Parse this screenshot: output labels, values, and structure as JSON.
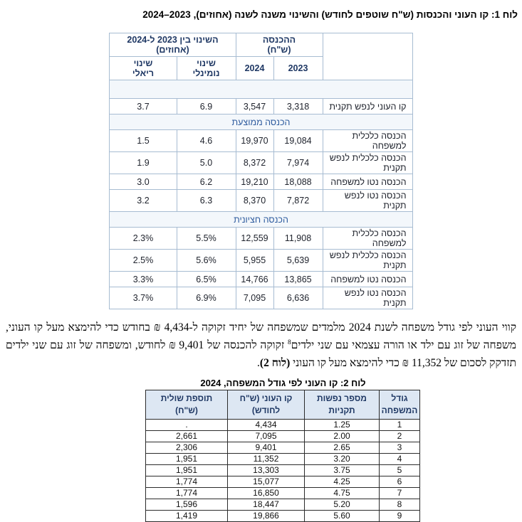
{
  "table1": {
    "title": "לוח 1: קו העוני והכנסות (ש\"ח שוטפים לחודש) והשינוי משנה לשנה (אחוזים), 2023–2024",
    "header": {
      "corner": "",
      "income_group": "ההכנסה\n(ש\"ח)",
      "change_group": "השינוי בין 2023 ל-2024\n(אחוזים)",
      "col_2023": "2023",
      "col_2024": "2024",
      "col_nominal": "שינוי\nנומינלי",
      "col_real": "שינוי\nריאלי"
    },
    "rows": [
      {
        "type": "spacer"
      },
      {
        "type": "data",
        "label": "קו העוני לנפש תקנית",
        "y2023": "3,318",
        "y2024": "3,547",
        "nominal": "6.9",
        "real": "3.7"
      },
      {
        "type": "section",
        "label": "הכנסה ממוצעת"
      },
      {
        "type": "data",
        "label": "הכנסה כלכלית למשפחה",
        "y2023": "19,084",
        "y2024": "19,970",
        "nominal": "4.6",
        "real": "1.5"
      },
      {
        "type": "data",
        "label": "הכנסה כלכלית לנפש תקנית",
        "y2023": "7,974",
        "y2024": "8,372",
        "nominal": "5.0",
        "real": "1.9"
      },
      {
        "type": "data",
        "label": "הכנסה נטו למשפחה",
        "y2023": "18,088",
        "y2024": "19,210",
        "nominal": "6.2",
        "real": "3.0"
      },
      {
        "type": "data",
        "label": "הכנסה נטו לנפש תקנית",
        "y2023": "7,872",
        "y2024": "8,370",
        "nominal": "6.3",
        "real": "3.2"
      },
      {
        "type": "section",
        "label": "הכנסה חציונית"
      },
      {
        "type": "data",
        "label": "הכנסה כלכלית למשפחה",
        "y2023": "11,908",
        "y2024": "12,559",
        "nominal": "5.5%",
        "real": "2.3%"
      },
      {
        "type": "data",
        "label": "הכנסה כלכלית לנפש תקנית",
        "y2023": "5,639",
        "y2024": "5,955",
        "nominal": "5.6%",
        "real": "2.5%"
      },
      {
        "type": "data",
        "label": "הכנסה נטו למשפחה",
        "y2023": "13,865",
        "y2024": "14,766",
        "nominal": "6.5%",
        "real": "3.3%"
      },
      {
        "type": "data",
        "label": "הכנסה נטו לנפש תקנית",
        "y2023": "6,636",
        "y2024": "7,095",
        "nominal": "6.9%",
        "real": "3.7%"
      }
    ]
  },
  "paragraph": {
    "segments": [
      {
        "text": "קווי העוני לפי גודל משפחה לשנת 2024 מלמדים שמשפחה של יחיד זקוקה ל-4,434 ₪ בחודש כדי להימצא מעל קו העוני, משפחה של זוג עם ילד או הורה עצמאי עם שני ילדים"
      },
      {
        "text": "8",
        "sup": true
      },
      {
        "text": " זקוקה להכנסה של 9,401 ₪ לחודש, ומשפחה של זוג עם שני ילדים תזדקק לסכום של 11,352 ₪ כדי להימצא מעל קו העוני "
      },
      {
        "text": "(לוח 2)",
        "bold": true
      },
      {
        "text": "."
      }
    ]
  },
  "table2": {
    "title": "לוח 2: קו העוני לפי גודל המשפחה, 2024",
    "headers": [
      "גודל\nהמשפחה",
      "מספר נפשות\nתקניות",
      "קו העוני (ש\"ח\nלחודש)",
      "תוספת שולית\n(ש\"ח)"
    ],
    "rows": [
      [
        "1",
        "1.25",
        "4,434",
        "."
      ],
      [
        "2",
        "2.00",
        "7,095",
        "2,661"
      ],
      [
        "3",
        "2.65",
        "9,401",
        "2,306"
      ],
      [
        "4",
        "3.20",
        "11,352",
        "1,951"
      ],
      [
        "5",
        "3.75",
        "13,303",
        "1,951"
      ],
      [
        "6",
        "4.25",
        "15,077",
        "1,774"
      ],
      [
        "7",
        "4.75",
        "16,850",
        "1,774"
      ],
      [
        "8",
        "5.20",
        "18,447",
        "1,596"
      ],
      [
        "9",
        "5.60",
        "19,866",
        "1,419"
      ]
    ]
  }
}
